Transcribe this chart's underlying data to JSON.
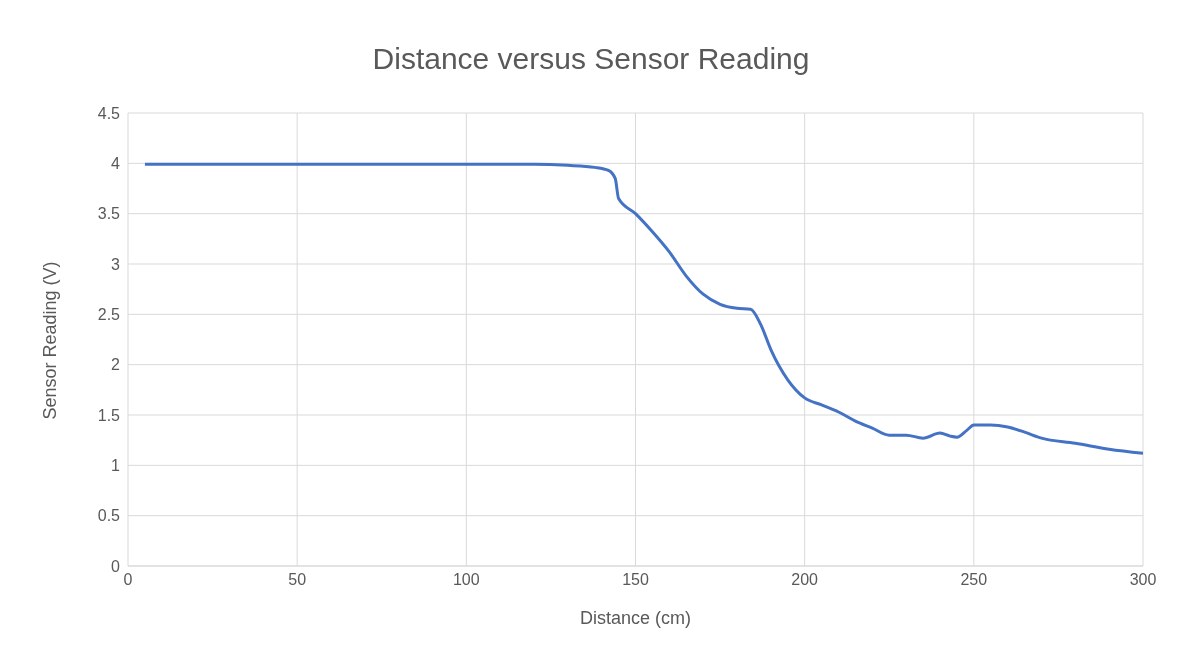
{
  "chart_data": {
    "type": "line",
    "title": "Distance versus Sensor Reading",
    "xlabel": "Distance (cm)",
    "ylabel": "Sensor Reading (V)",
    "x": [
      5,
      50,
      100,
      120,
      130,
      138,
      142,
      144,
      145,
      150,
      155,
      160,
      165,
      170,
      175,
      180,
      184,
      187,
      190,
      195,
      200,
      205,
      210,
      215,
      220,
      225,
      230,
      235,
      240,
      243,
      245,
      248,
      250,
      255,
      260,
      265,
      270,
      280,
      290,
      300
    ],
    "series": [
      {
        "color": "#4472c4",
        "values": [
          3.99,
          3.99,
          3.99,
          3.99,
          3.98,
          3.96,
          3.93,
          3.85,
          3.65,
          3.5,
          3.32,
          3.12,
          2.88,
          2.7,
          2.6,
          2.56,
          2.55,
          2.4,
          2.15,
          1.85,
          1.67,
          1.6,
          1.53,
          1.44,
          1.37,
          1.3,
          1.3,
          1.27,
          1.32,
          1.29,
          1.28,
          1.35,
          1.4,
          1.4,
          1.38,
          1.33,
          1.27,
          1.22,
          1.16,
          1.12
        ]
      }
    ],
    "xlim": [
      0,
      300
    ],
    "xticks": [
      0,
      50,
      100,
      150,
      200,
      250,
      300
    ],
    "ylim": [
      0,
      4.5
    ],
    "yticks": [
      0,
      0.5,
      1,
      1.5,
      2,
      2.5,
      3,
      3.5,
      4,
      4.5
    ],
    "grid": true,
    "legend": false,
    "marker": "none",
    "line_style": "solid"
  }
}
